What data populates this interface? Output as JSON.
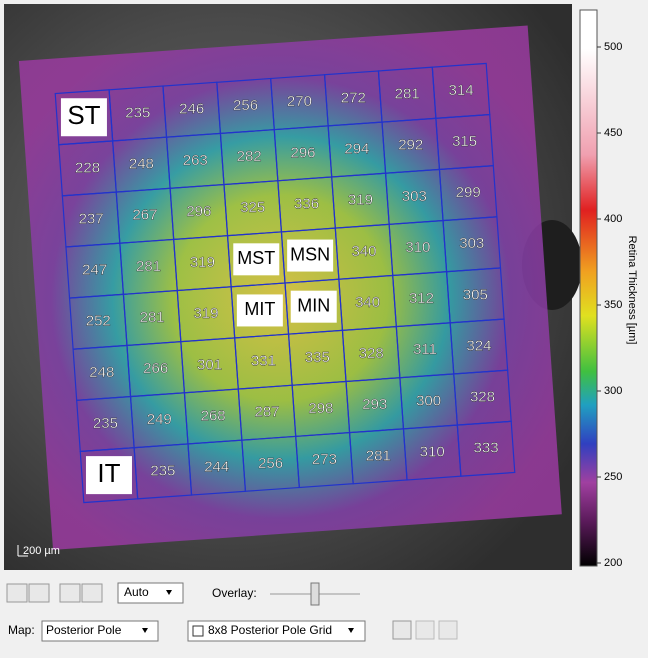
{
  "grid": {
    "rows": [
      [
        "ST",
        235,
        246,
        256,
        270,
        272,
        281,
        314
      ],
      [
        228,
        248,
        263,
        282,
        296,
        294,
        292,
        315
      ],
      [
        237,
        267,
        296,
        325,
        336,
        319,
        303,
        299
      ],
      [
        247,
        281,
        319,
        "MST",
        "MSN",
        340,
        310,
        303
      ],
      [
        252,
        281,
        319,
        "MIT",
        "MIN",
        340,
        312,
        305
      ],
      [
        248,
        266,
        301,
        331,
        335,
        328,
        311,
        324
      ],
      [
        235,
        249,
        268,
        287,
        298,
        293,
        300,
        328
      ],
      [
        "IT",
        235,
        244,
        256,
        273,
        281,
        310,
        333
      ]
    ]
  },
  "colorbar": {
    "label": "Retina Thickness [µm]",
    "ticks": [
      200,
      250,
      300,
      350,
      400,
      450,
      500
    ]
  },
  "scale_bar": "200 µm",
  "toolbar": {
    "zoom_mode": "Auto",
    "overlay_label": "Overlay:",
    "map_label": "Map:",
    "map_value": "Posterior Pole",
    "grid_value": "8x8 Posterior Pole Grid"
  }
}
